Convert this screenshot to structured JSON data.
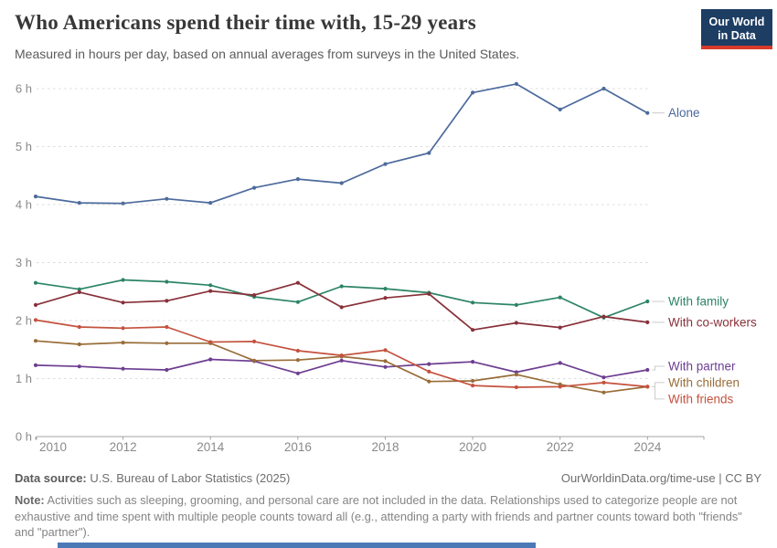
{
  "logo": {
    "line1": "Our World",
    "line2": "in Data",
    "bg_color": "#1d3d63",
    "accent_color": "#d93a2b"
  },
  "chart_data": {
    "type": "line",
    "title": "Who Americans spend their time with, 15-29 years",
    "subtitle": "Measured in hours per day, based on annual averages from surveys in the United States.",
    "x": [
      2010,
      2011,
      2012,
      2013,
      2014,
      2015,
      2016,
      2017,
      2018,
      2019,
      2020,
      2021,
      2022,
      2023,
      2024
    ],
    "series": [
      {
        "name": "Alone",
        "color": "#4C6A9C",
        "label_dy": 0,
        "values": [
          4.14,
          4.03,
          4.02,
          4.1,
          4.03,
          4.29,
          4.44,
          4.37,
          4.7,
          4.89,
          5.93,
          6.08,
          5.64,
          6.0,
          5.58
        ]
      },
      {
        "name": "With family",
        "color": "#2C8465",
        "label_dy": 0,
        "values": [
          2.65,
          2.54,
          2.7,
          2.67,
          2.61,
          2.41,
          2.32,
          2.59,
          2.55,
          2.48,
          2.31,
          2.27,
          2.4,
          2.05,
          2.33
        ]
      },
      {
        "name": "With co-workers",
        "color": "#883039",
        "label_dy": 0,
        "values": [
          2.27,
          2.49,
          2.31,
          2.34,
          2.51,
          2.44,
          2.65,
          2.23,
          2.39,
          2.46,
          1.84,
          1.96,
          1.88,
          2.07,
          1.97
        ]
      },
      {
        "name": "With partner",
        "color": "#6D3E91",
        "label_dy": -4,
        "values": [
          1.23,
          1.21,
          1.17,
          1.15,
          1.33,
          1.3,
          1.09,
          1.31,
          1.2,
          1.25,
          1.29,
          1.11,
          1.27,
          1.02,
          1.15
        ]
      },
      {
        "name": "With children",
        "color": "#996D39",
        "label_dy": -4.5,
        "values": [
          1.65,
          1.59,
          1.62,
          1.61,
          1.61,
          1.31,
          1.32,
          1.38,
          1.3,
          0.95,
          0.96,
          1.07,
          0.9,
          0.76,
          0.86
        ]
      },
      {
        "name": "With friends",
        "color": "#C4523E",
        "label_dy": 13.5,
        "values": [
          2.01,
          1.89,
          1.87,
          1.89,
          1.63,
          1.64,
          1.48,
          1.4,
          1.49,
          1.12,
          0.88,
          0.85,
          0.86,
          0.93,
          0.86
        ]
      }
    ],
    "xlabel": "",
    "ylabel": "",
    "y_ticks": [
      0,
      1,
      2,
      3,
      4,
      5,
      6
    ],
    "y_tick_suffix": " h",
    "x_tick_years": [
      2010,
      2012,
      2014,
      2016,
      2018,
      2020,
      2022,
      2024
    ],
    "ylim": [
      0,
      6.2
    ],
    "grid": "horizontal-dashed",
    "legend_position": "right-inline-labels"
  },
  "footer": {
    "datasource_label": "Data source:",
    "datasource_value": " U.S. Bureau of Labor Statistics (2025)",
    "citation": "OurWorldinData.org/time-use | CC BY",
    "note_label": "Note:",
    "note_body": " Activities such as sleeping, grooming, and personal care are not included in the data. Relationships used to categorize people are not exhaustive and time spent with multiple people counts toward all (e.g., attending a party with friends and partner counts toward both \"friends\" and \"partner\")."
  }
}
